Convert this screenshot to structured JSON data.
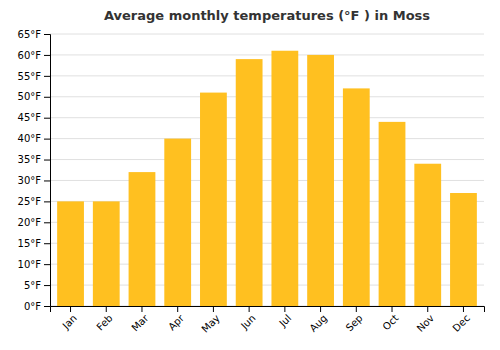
{
  "chart_data": {
    "type": "bar",
    "title": "Average monthly temperatures (°F ) in Moss",
    "categories": [
      "Jan",
      "Feb",
      "Mar",
      "Apr",
      "May",
      "Jun",
      "Jul",
      "Aug",
      "Sep",
      "Oct",
      "Nov",
      "Dec"
    ],
    "values": [
      25,
      25,
      32,
      40,
      51,
      59,
      61,
      60,
      52,
      44,
      34,
      27
    ],
    "color": "#FFC020",
    "ylim": [
      0,
      65
    ],
    "yticks": [
      {
        "value": 0,
        "label": "0°F"
      },
      {
        "value": 5,
        "label": "5°F"
      },
      {
        "value": 10,
        "label": "10°F"
      },
      {
        "value": 15,
        "label": "15°F"
      },
      {
        "value": 20,
        "label": "20°F"
      },
      {
        "value": 25,
        "label": "25°F"
      },
      {
        "value": 30,
        "label": "30°F"
      },
      {
        "value": 35,
        "label": "35°F"
      },
      {
        "value": 40,
        "label": "40°F"
      },
      {
        "value": 45,
        "label": "45°F"
      },
      {
        "value": 50,
        "label": "50°F"
      },
      {
        "value": 55,
        "label": "55°F"
      },
      {
        "value": 60,
        "label": "60°F"
      },
      {
        "value": 65,
        "label": "65°F"
      }
    ],
    "grid": true
  }
}
